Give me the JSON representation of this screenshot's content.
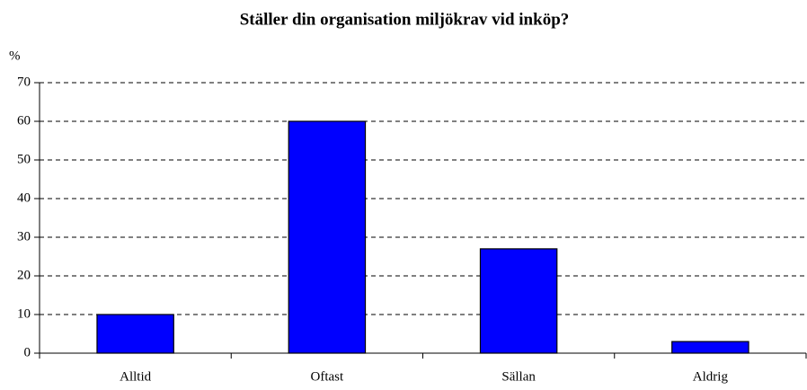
{
  "chart_data": {
    "type": "bar",
    "title": "Ställer din organisation miljökrav vid inköp?",
    "y_label": "%",
    "categories": [
      "Alltid",
      "Oftast",
      "Sällan",
      "Aldrig"
    ],
    "values": [
      10,
      60,
      27,
      3
    ],
    "color": "#0000ff",
    "ylim": [
      0,
      70
    ],
    "yticks": [
      0,
      10,
      20,
      30,
      40,
      50,
      60,
      70
    ],
    "grid": true
  }
}
